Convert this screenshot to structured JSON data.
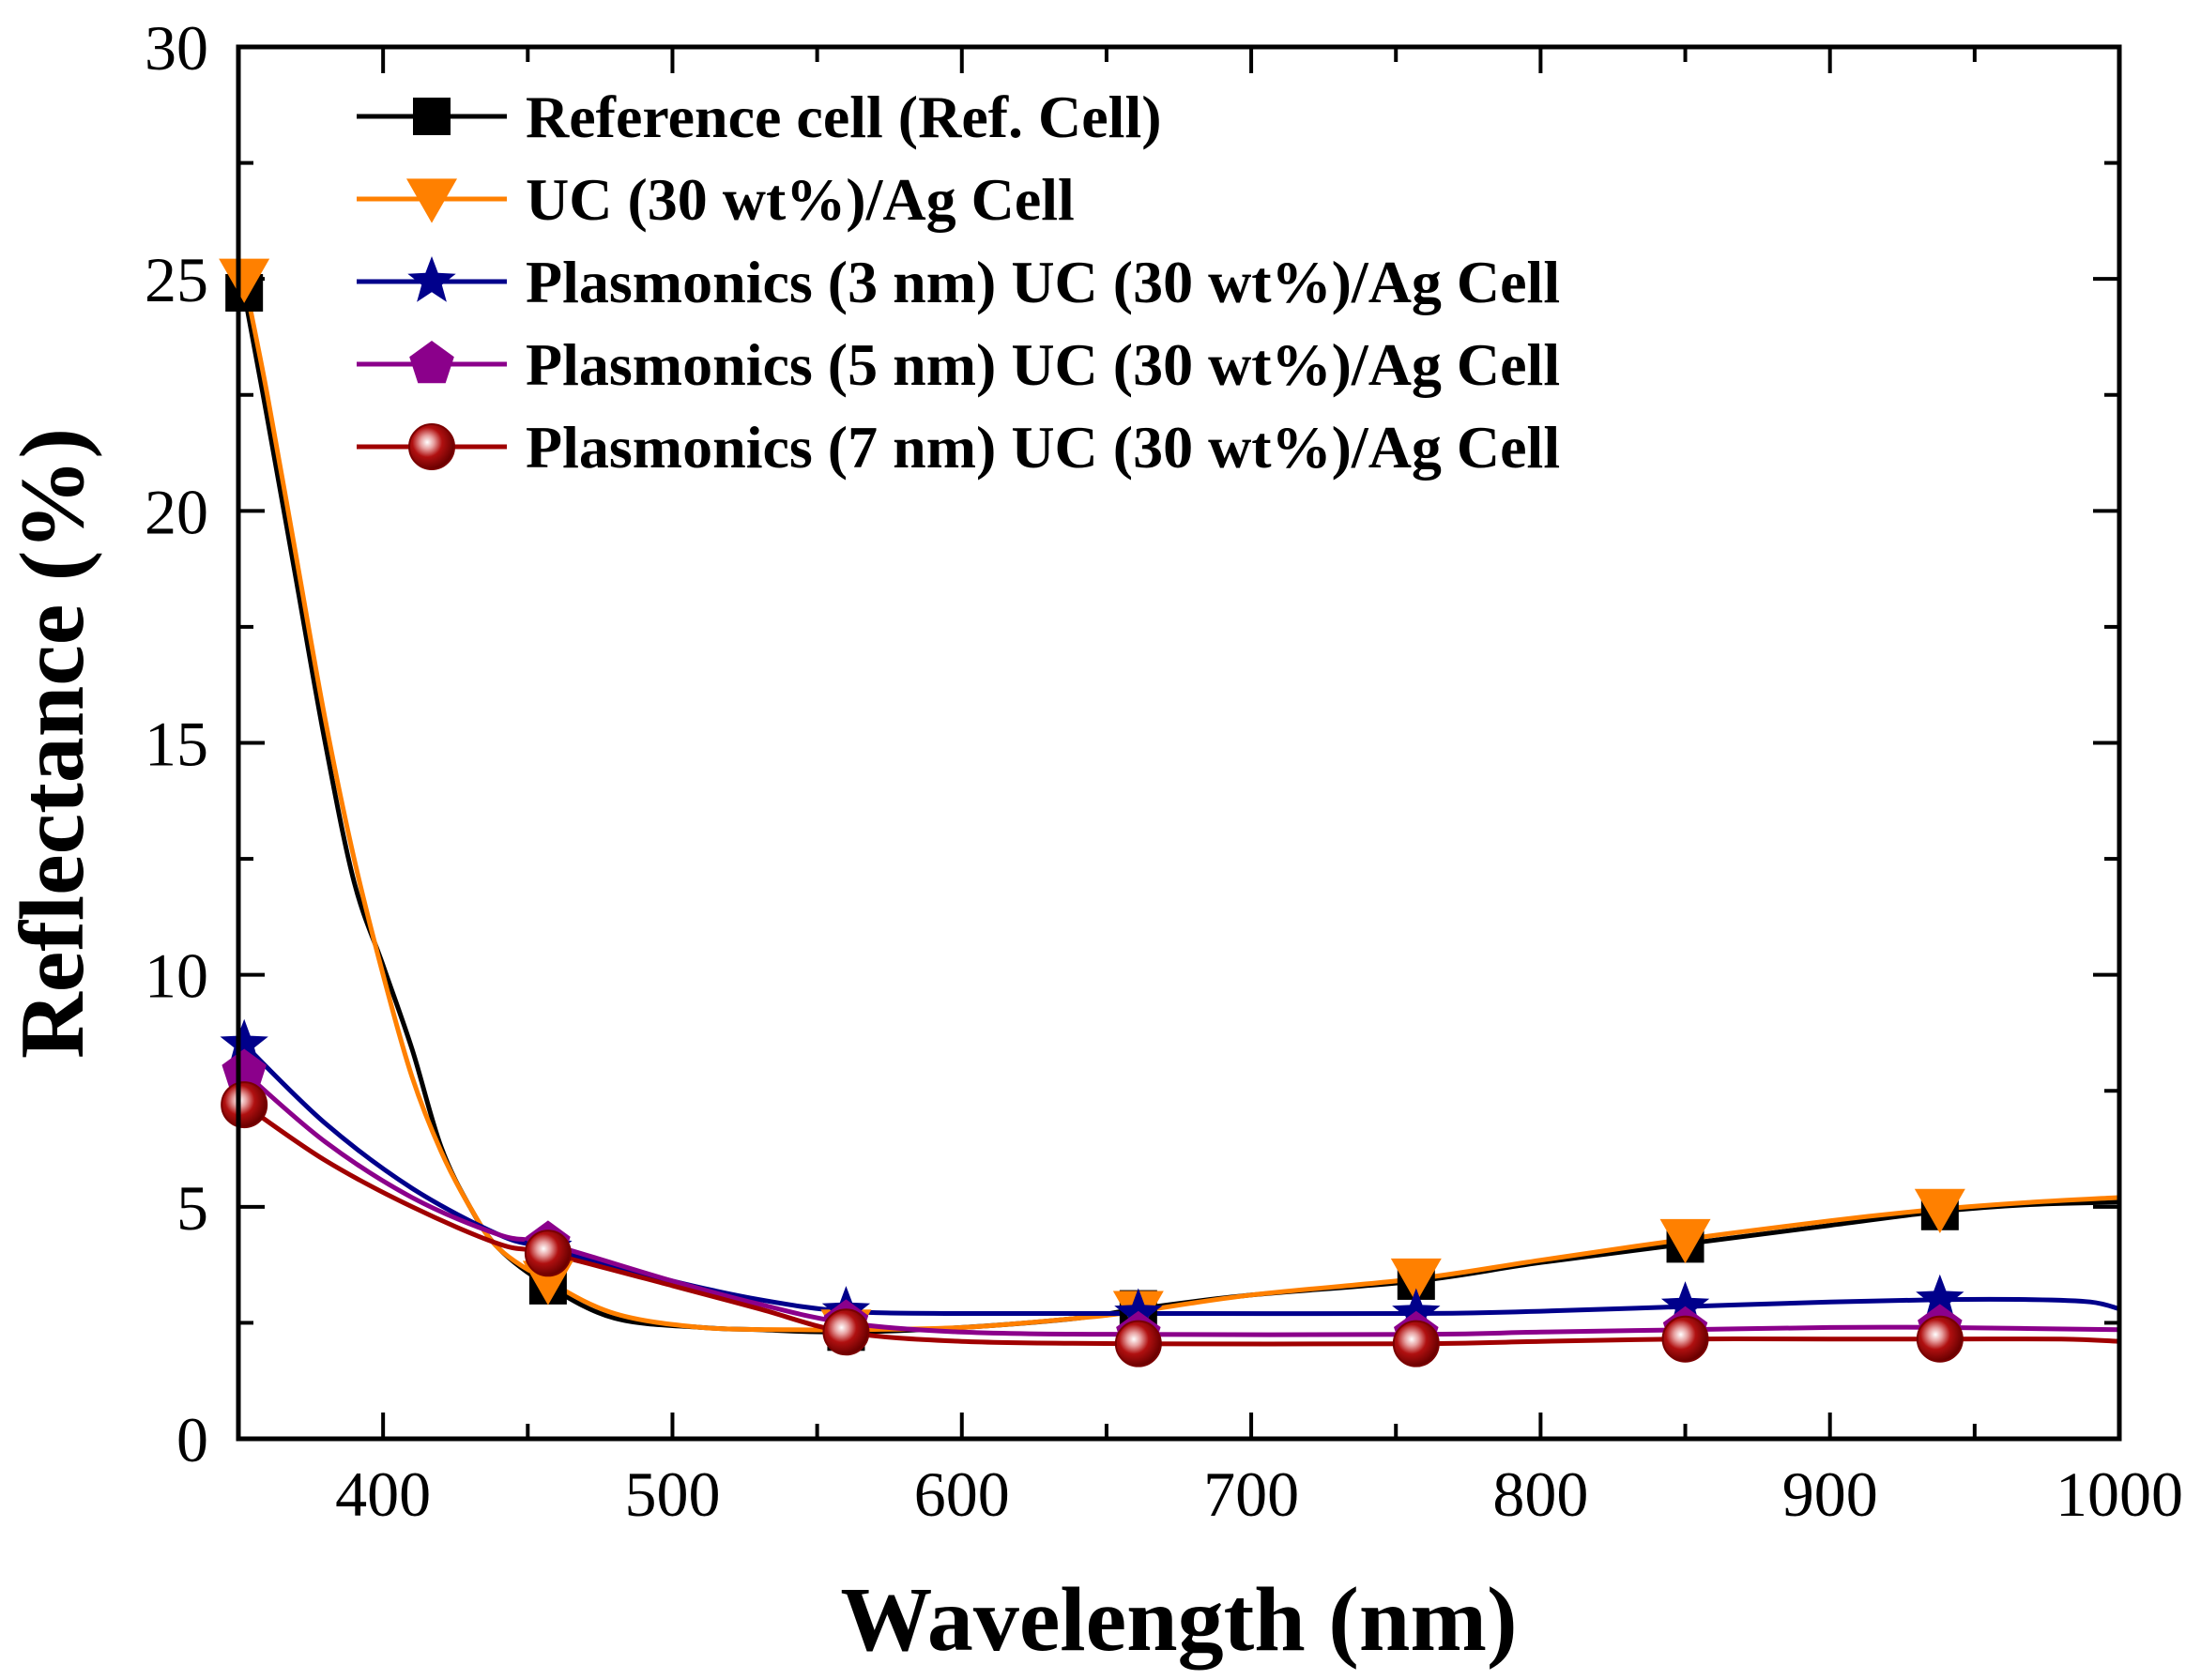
{
  "chart_data": {
    "type": "line",
    "xlabel": "Wavelength (nm)",
    "ylabel": "Reflectance (%)",
    "xlim": [
      350,
      1000
    ],
    "ylim": [
      0,
      30
    ],
    "x_ticks": [
      400,
      500,
      600,
      700,
      800,
      900,
      1000
    ],
    "y_ticks": [
      0,
      5,
      10,
      15,
      20,
      25,
      30
    ],
    "grid": false,
    "legend_position": "top-left",
    "series": [
      {
        "name": "Reference cell (Ref. Cell)",
        "color": "#000000",
        "marker": "square",
        "x": [
          352,
          360,
          370,
          380,
          390,
          400,
          410,
          420,
          430,
          440,
          457,
          480,
          510,
          530,
          560,
          600,
          640,
          661,
          700,
          757,
          800,
          850,
          900,
          938,
          970,
          1000
        ],
        "y": [
          24.7,
          22.0,
          18.5,
          15.0,
          12.0,
          10.2,
          8.4,
          6.3,
          5.0,
          4.1,
          3.3,
          2.6,
          2.4,
          2.35,
          2.3,
          2.4,
          2.6,
          2.8,
          3.1,
          3.4,
          3.8,
          4.2,
          4.6,
          4.9,
          5.05,
          5.1
        ],
        "marker_x": [
          352,
          457,
          560,
          661,
          757,
          850,
          938
        ],
        "marker_y": [
          24.7,
          3.3,
          2.3,
          2.8,
          3.4,
          4.2,
          4.9
        ]
      },
      {
        "name": "UC (30 wt%)/Ag Cell",
        "color": "#FF8000",
        "marker": "triangle-down",
        "x": [
          352,
          360,
          370,
          380,
          390,
          400,
          410,
          420,
          430,
          440,
          457,
          480,
          510,
          540,
          560,
          600,
          640,
          661,
          700,
          757,
          800,
          850,
          900,
          938,
          970,
          1000
        ],
        "y": [
          25.0,
          22.5,
          19.0,
          15.5,
          12.5,
          10.0,
          7.8,
          6.2,
          5.0,
          4.1,
          3.4,
          2.7,
          2.4,
          2.35,
          2.35,
          2.4,
          2.6,
          2.75,
          3.1,
          3.45,
          3.85,
          4.3,
          4.7,
          4.95,
          5.1,
          5.2
        ],
        "marker_x": [
          352,
          457,
          560,
          661,
          757,
          850,
          938
        ],
        "marker_y": [
          25.0,
          3.4,
          2.35,
          2.75,
          3.45,
          4.3,
          4.95
        ]
      },
      {
        "name": "Plasmonics (3 nm) UC (30 wt%)/Ag Cell",
        "color": "#00008B",
        "marker": "star",
        "x": [
          352,
          380,
          410,
          440,
          457,
          500,
          530,
          560,
          600,
          661,
          757,
          800,
          850,
          900,
          938,
          970,
          990,
          1000
        ],
        "y": [
          8.5,
          6.8,
          5.4,
          4.4,
          4.1,
          3.4,
          3.0,
          2.75,
          2.7,
          2.7,
          2.7,
          2.75,
          2.85,
          2.95,
          3.0,
          3.0,
          2.95,
          2.8
        ],
        "marker_x": [
          352,
          457,
          560,
          661,
          757,
          850,
          938
        ],
        "marker_y": [
          8.5,
          4.1,
          2.75,
          2.7,
          2.7,
          2.85,
          3.0
        ]
      },
      {
        "name": "Plasmonics (5 nm) UC (30 wt%)/Ag Cell",
        "color": "#8B008B",
        "marker": "pentagon",
        "x": [
          352,
          380,
          410,
          440,
          457,
          500,
          530,
          560,
          600,
          661,
          757,
          800,
          850,
          900,
          938,
          1000
        ],
        "y": [
          7.9,
          6.4,
          5.2,
          4.4,
          4.2,
          3.4,
          2.9,
          2.5,
          2.3,
          2.25,
          2.25,
          2.3,
          2.35,
          2.4,
          2.4,
          2.35
        ],
        "marker_x": [
          352,
          457,
          560,
          661,
          757,
          850,
          938
        ],
        "marker_y": [
          7.9,
          4.2,
          2.5,
          2.25,
          2.25,
          2.35,
          2.4
        ]
      },
      {
        "name": "Plasmonics (7 nm) UC (30 wt%)/Ag Cell",
        "color": "#A00000",
        "marker": "circle",
        "x": [
          352,
          380,
          410,
          440,
          457,
          500,
          530,
          560,
          600,
          661,
          757,
          800,
          850,
          900,
          938,
          980,
          1000
        ],
        "y": [
          7.2,
          6.0,
          5.0,
          4.2,
          4.0,
          3.3,
          2.8,
          2.3,
          2.1,
          2.05,
          2.05,
          2.1,
          2.15,
          2.15,
          2.15,
          2.15,
          2.1
        ],
        "marker_x": [
          352,
          457,
          560,
          661,
          757,
          850,
          938
        ],
        "marker_y": [
          7.2,
          4.0,
          2.3,
          2.05,
          2.05,
          2.15,
          2.15
        ]
      }
    ]
  }
}
